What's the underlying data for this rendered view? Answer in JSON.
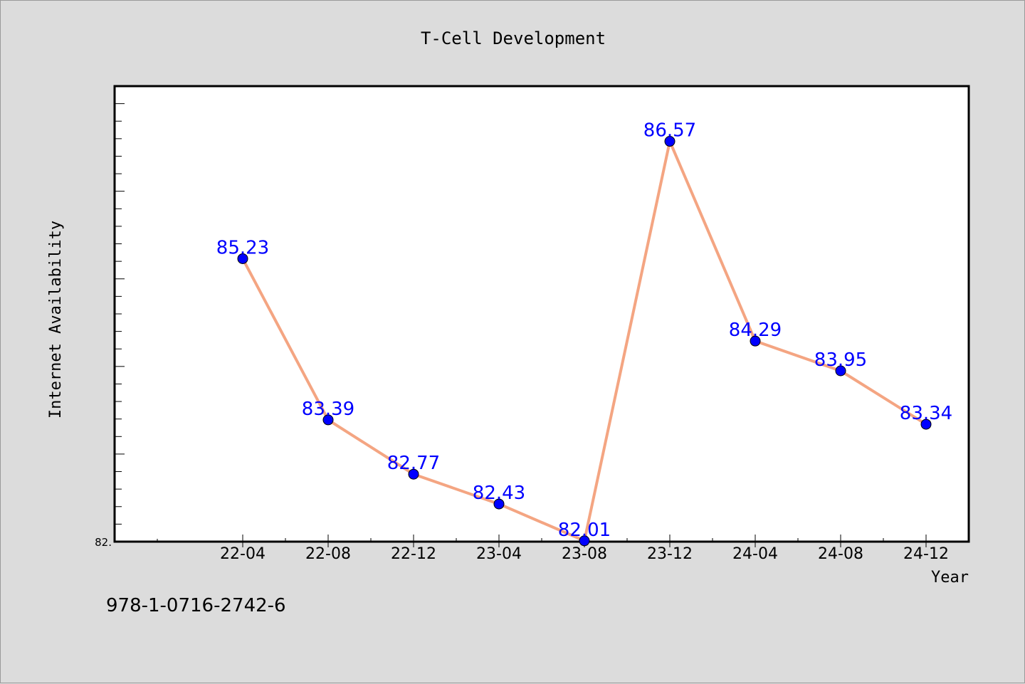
{
  "chart_data": {
    "type": "line",
    "title": "T-Cell Development",
    "xlabel": "Year",
    "ylabel": "Internet Availability",
    "categories": [
      "22-04",
      "22-08",
      "22-12",
      "23-04",
      "23-08",
      "23-12",
      "24-04",
      "24-08",
      "24-12"
    ],
    "series": [
      {
        "values": [
          85.23,
          83.39,
          82.77,
          82.43,
          82.01,
          86.57,
          84.29,
          83.95,
          83.34
        ],
        "data_labels": [
          "85.23",
          "83.39",
          "82.77",
          "82.43",
          "82.01",
          "86.57",
          "84.29",
          "83.95",
          "83.34"
        ],
        "line_color": "#f4a582",
        "marker_color": "#0000ff",
        "label_color": "#0000ff"
      }
    ],
    "y_tick_labels": [
      "82."
    ],
    "ylim": [
      82.0,
      87.2
    ],
    "grid": false,
    "legend": "none"
  },
  "footer": {
    "code": "978-1-0716-2742-6"
  }
}
